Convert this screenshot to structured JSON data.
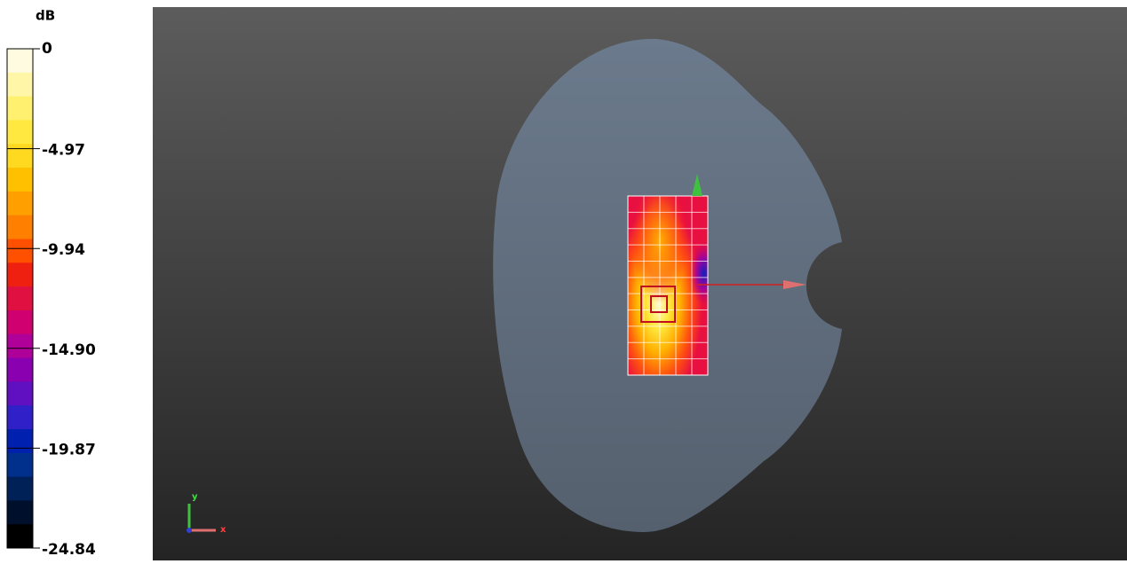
{
  "legend": {
    "unit": "dB",
    "labels": [
      "0",
      "-4.97",
      "-9.94",
      "-14.90",
      "-19.87",
      "-24.84"
    ]
  },
  "axes": {
    "y": "y",
    "x": "x"
  }
}
